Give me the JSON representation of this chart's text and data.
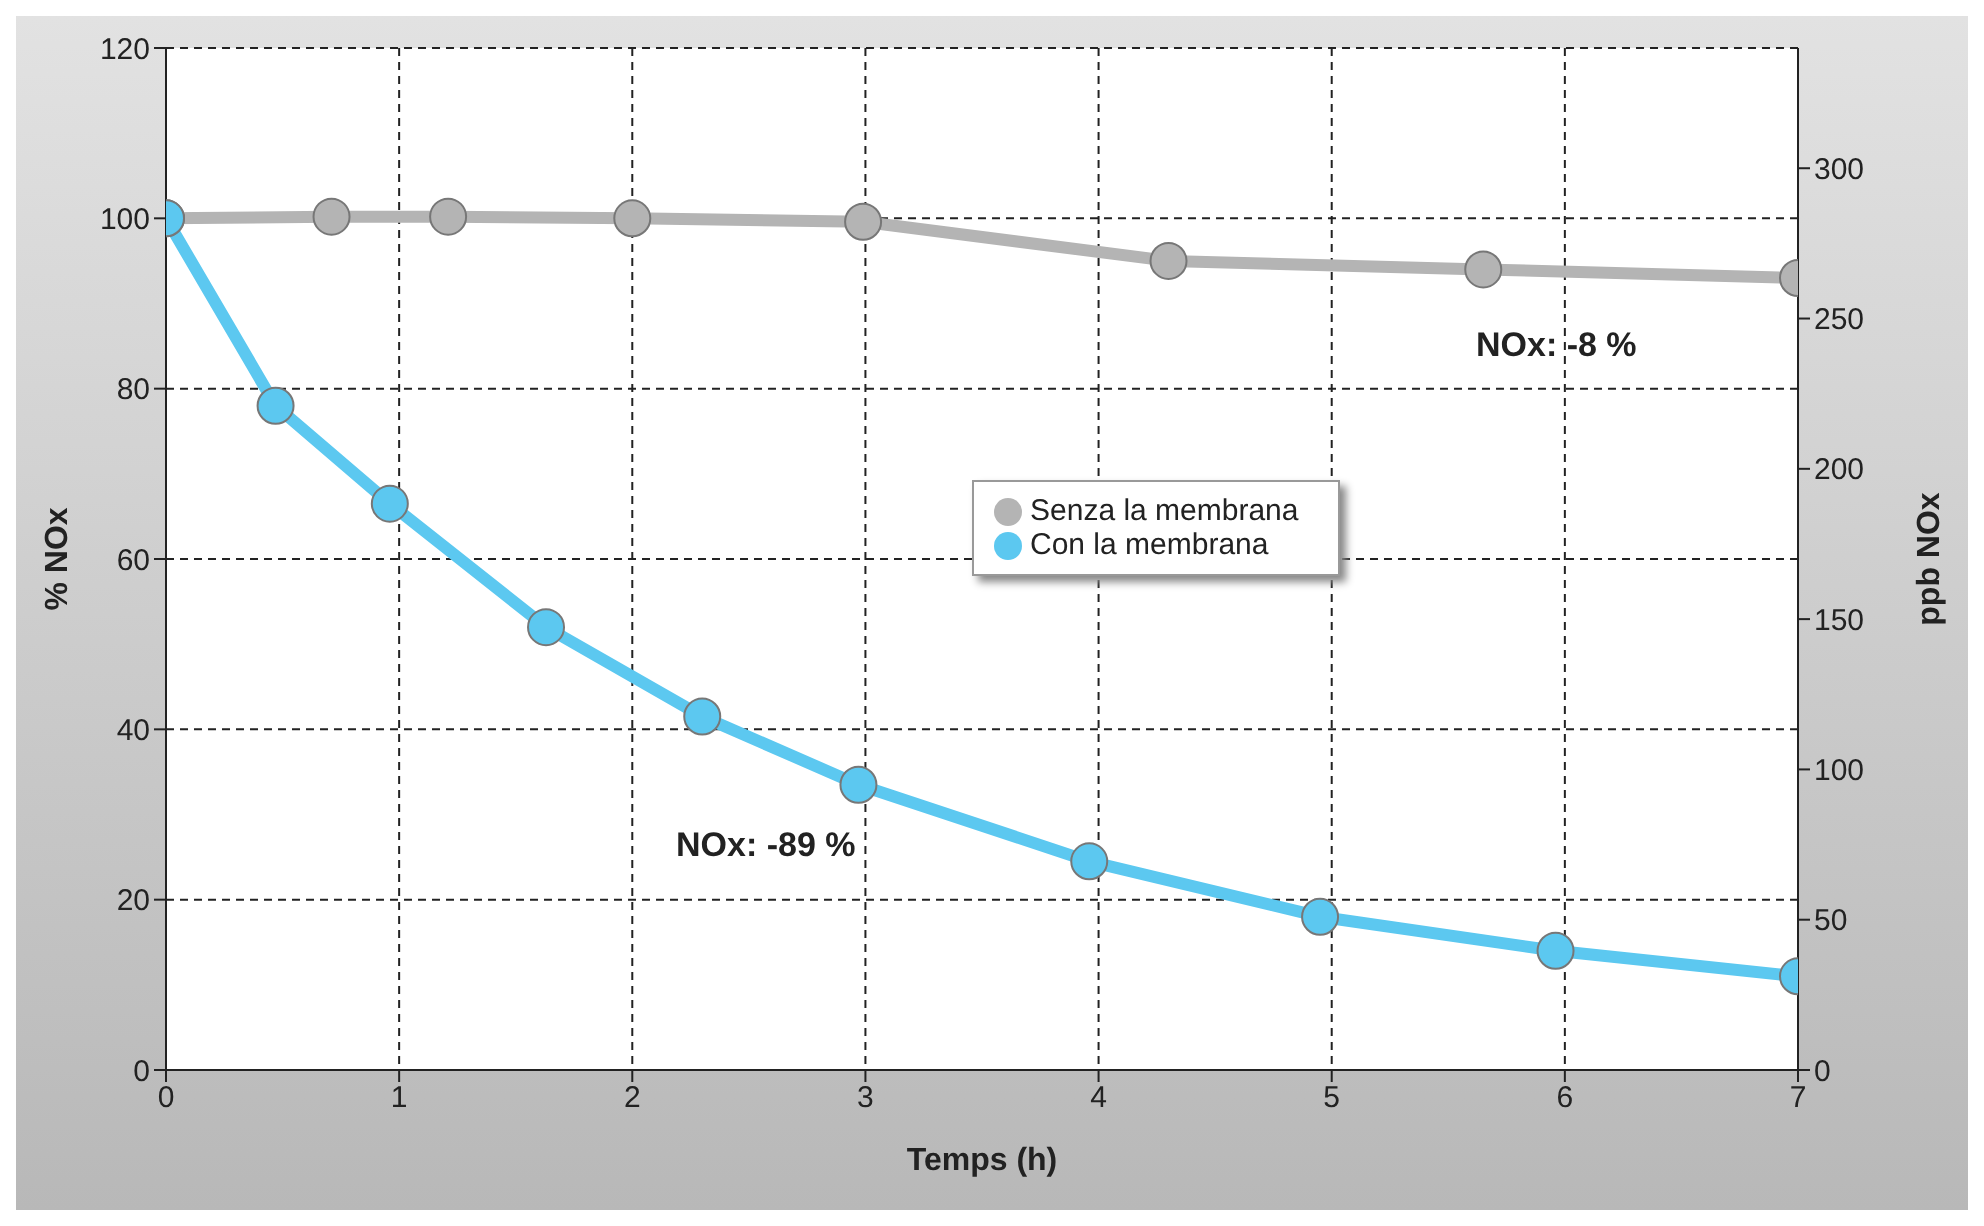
{
  "chart_data": {
    "type": "line",
    "xlabel": "Temps (h)",
    "ylabel": "% NOx",
    "y2label": "ppb NOx",
    "xlim": [
      0,
      7
    ],
    "xticks": [
      0,
      1,
      2,
      3,
      4,
      5,
      6,
      7
    ],
    "ylim": [
      0,
      120
    ],
    "yticks": [
      0,
      20,
      40,
      60,
      80,
      100,
      120
    ],
    "y2lim": [
      0,
      340
    ],
    "y2ticks": [
      0,
      50,
      100,
      150,
      200,
      250,
      300
    ],
    "series": [
      {
        "name": "Senza la membrana",
        "color": "#b4b4b4",
        "x": [
          0,
          0.71,
          1.21,
          2.0,
          2.99,
          4.3,
          5.65,
          7.0
        ],
        "values": [
          100,
          100.2,
          100.2,
          100,
          99.6,
          95,
          94,
          93
        ]
      },
      {
        "name": "Con la membrana",
        "color": "#5cc8f0",
        "x": [
          0,
          0.47,
          0.96,
          1.63,
          2.3,
          2.97,
          3.96,
          4.95,
          5.96,
          7.0
        ],
        "values": [
          100,
          78,
          66.5,
          52,
          41.5,
          33.5,
          24.5,
          18,
          14,
          11
        ]
      }
    ],
    "annotations": [
      "NOx: -8 %",
      "NOx: -89 %"
    ],
    "grid": true,
    "legend": "right",
    "marker": "circle",
    "line_style": "solid"
  }
}
